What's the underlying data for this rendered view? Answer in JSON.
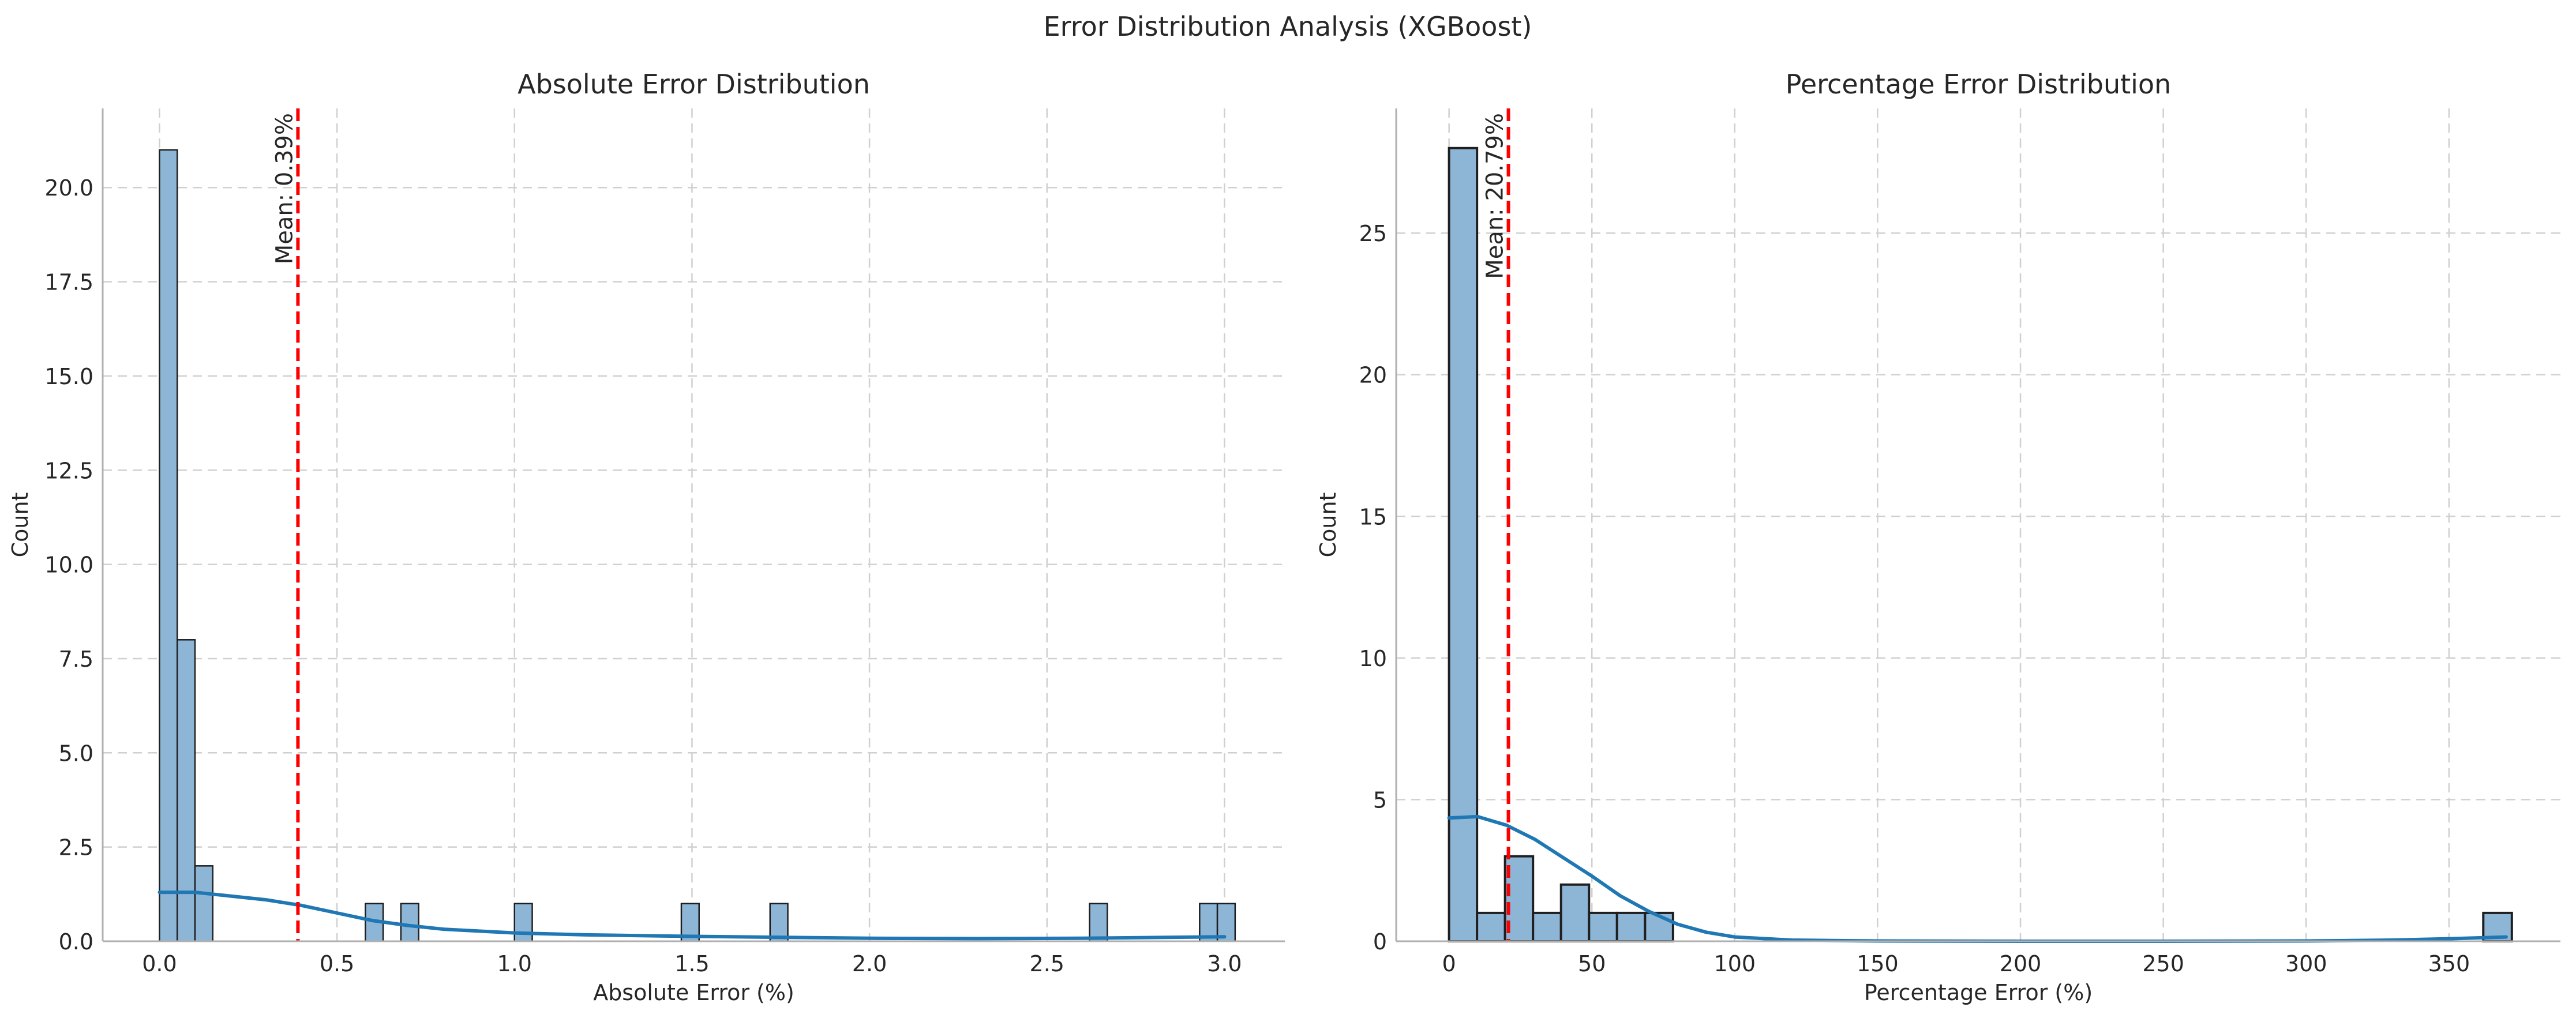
{
  "figure": {
    "title": "Error Distribution Analysis (XGBoost)"
  },
  "colors": {
    "bar_fill": "#8db5d6",
    "bar_edge": "#1f1f1f",
    "kde": "#1f77b4",
    "mean_line": "#ff0000",
    "grid": "#d0d0d0",
    "axis": "#b0b0b0"
  },
  "chart_data": [
    {
      "type": "bar",
      "title": "Absolute Error Distribution",
      "xlabel": "Absolute Error (%)",
      "ylabel": "Count",
      "xlim": [
        -0.16,
        3.17
      ],
      "ylim": [
        0,
        22.1
      ],
      "xticks": [
        0.0,
        0.5,
        1.0,
        1.5,
        2.0,
        2.5,
        3.0
      ],
      "xtick_labels": [
        "0.0",
        "0.5",
        "1.0",
        "1.5",
        "2.0",
        "2.5",
        "3.0"
      ],
      "yticks": [
        0,
        2.5,
        5.0,
        7.5,
        10.0,
        12.5,
        15.0,
        17.5,
        20.0
      ],
      "ytick_labels": [
        "0.0",
        "2.5",
        "5.0",
        "7.5",
        "10.0",
        "12.5",
        "15.0",
        "17.5",
        "20.0"
      ],
      "bins": [
        {
          "x0": 0.0,
          "x1": 0.05,
          "count": 21
        },
        {
          "x0": 0.05,
          "x1": 0.1,
          "count": 8
        },
        {
          "x0": 0.1,
          "x1": 0.15,
          "count": 2
        },
        {
          "x0": 0.58,
          "x1": 0.63,
          "count": 1
        },
        {
          "x0": 0.68,
          "x1": 0.73,
          "count": 1
        },
        {
          "x0": 1.0,
          "x1": 1.05,
          "count": 1
        },
        {
          "x0": 1.47,
          "x1": 1.52,
          "count": 1
        },
        {
          "x0": 1.72,
          "x1": 1.77,
          "count": 1
        },
        {
          "x0": 2.62,
          "x1": 2.67,
          "count": 1
        },
        {
          "x0": 2.93,
          "x1": 2.98,
          "count": 1
        },
        {
          "x0": 2.98,
          "x1": 3.03,
          "count": 1
        }
      ],
      "kde": {
        "x": [
          0.0,
          0.1,
          0.2,
          0.3,
          0.4,
          0.5,
          0.6,
          0.7,
          0.8,
          1.0,
          1.2,
          1.5,
          1.8,
          2.0,
          2.3,
          2.6,
          2.8,
          3.0
        ],
        "y": [
          1.3,
          1.3,
          1.2,
          1.1,
          0.95,
          0.75,
          0.55,
          0.42,
          0.32,
          0.22,
          0.17,
          0.13,
          0.1,
          0.08,
          0.07,
          0.08,
          0.1,
          0.12
        ]
      },
      "mean": {
        "value": 0.39,
        "label": "Mean: 0.39%"
      }
    },
    {
      "type": "bar",
      "title": "Percentage Error Distribution",
      "xlabel": "Percentage Error (%)",
      "ylabel": "Count",
      "xlim": [
        -18.5,
        389
      ],
      "ylim": [
        0,
        29.4
      ],
      "xticks": [
        0,
        50,
        100,
        150,
        200,
        250,
        300,
        350
      ],
      "xtick_labels": [
        "0",
        "50",
        "100",
        "150",
        "200",
        "250",
        "300",
        "350"
      ],
      "yticks": [
        0,
        5,
        10,
        15,
        20,
        25
      ],
      "ytick_labels": [
        "0",
        "5",
        "10",
        "15",
        "20",
        "25"
      ],
      "bins": [
        {
          "x0": 0,
          "x1": 9.8,
          "count": 28
        },
        {
          "x0": 9.8,
          "x1": 19.6,
          "count": 1
        },
        {
          "x0": 19.6,
          "x1": 29.4,
          "count": 3
        },
        {
          "x0": 29.4,
          "x1": 39.2,
          "count": 1
        },
        {
          "x0": 39.2,
          "x1": 49.0,
          "count": 2
        },
        {
          "x0": 49.0,
          "x1": 58.8,
          "count": 1
        },
        {
          "x0": 58.8,
          "x1": 68.6,
          "count": 1
        },
        {
          "x0": 68.6,
          "x1": 78.4,
          "count": 1
        },
        {
          "x0": 362,
          "x1": 372,
          "count": 1
        }
      ],
      "kde": {
        "x": [
          0,
          10,
          20,
          30,
          40,
          50,
          60,
          70,
          80,
          90,
          100,
          120,
          150,
          200,
          250,
          300,
          330,
          350,
          370
        ],
        "y": [
          4.35,
          4.4,
          4.1,
          3.6,
          2.95,
          2.3,
          1.6,
          1.05,
          0.6,
          0.32,
          0.15,
          0.04,
          0.01,
          0.0,
          0.0,
          0.01,
          0.04,
          0.09,
          0.15
        ]
      },
      "mean": {
        "value": 20.79,
        "label": "Mean: 20.79%"
      }
    }
  ]
}
